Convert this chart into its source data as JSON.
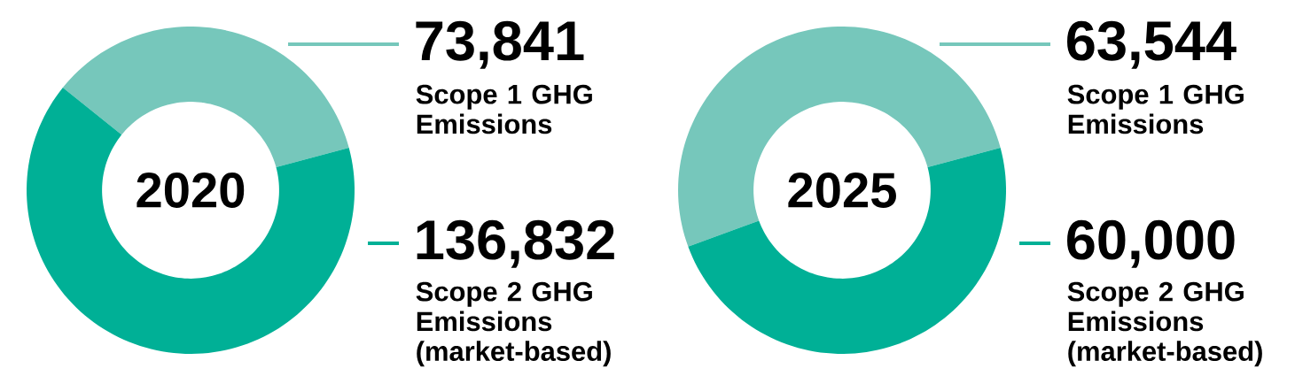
{
  "chart_data": [
    {
      "type": "donut",
      "title": "2020",
      "categories": [
        "Scope 1 GHG Emissions",
        "Scope 2 GHG Emissions (market-based)"
      ],
      "values": [
        73841,
        136832
      ],
      "value_labels": [
        "73,841",
        "136,832"
      ],
      "colors": [
        "#76c7bb",
        "#00b096"
      ]
    },
    {
      "type": "donut",
      "title": "2025",
      "categories": [
        "Scope 1 GHG Emissions",
        "Scope 2 GHG Emissions (market-based)"
      ],
      "values": [
        63544,
        60000
      ],
      "value_labels": [
        "63,544",
        "60,000"
      ],
      "colors": [
        "#76c7bb",
        "#00b096"
      ]
    }
  ]
}
